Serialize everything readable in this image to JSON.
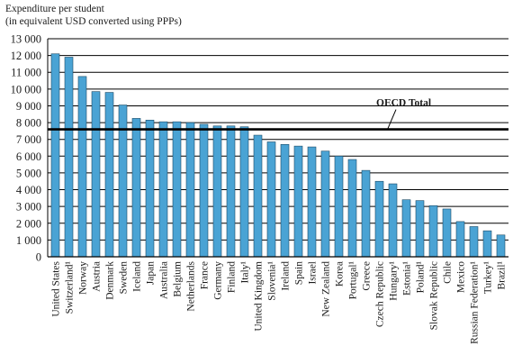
{
  "chart_data": {
    "type": "bar",
    "ylabel_line1": "Expenditure per student",
    "ylabel_line2": "(in equivalent USD converted using PPPs)",
    "ylim": [
      0,
      13000
    ],
    "yticks": [
      0,
      1000,
      2000,
      3000,
      4000,
      5000,
      6000,
      7000,
      8000,
      9000,
      10000,
      11000,
      12000,
      13000
    ],
    "ytick_labels": [
      "0",
      "1 000",
      "2 000",
      "3 000",
      "4 000",
      "5 000",
      "6 000",
      "7 000",
      "8 000",
      "9 000",
      "10 000",
      "11 000",
      "12 000",
      "13 000"
    ],
    "categories": [
      "United States",
      "Switzerland¹",
      "Norway",
      "Austria",
      "Denmark",
      "Sweden",
      "Iceland",
      "Japan",
      "Australia",
      "Belgium",
      "Netherlands",
      "France",
      "Germany",
      "Finland",
      "Italy¹",
      "United Kingdom",
      "Slovenia¹",
      "Ireland",
      "Spain",
      "Israel",
      "New Zealand",
      "Korea",
      "Portugal¹",
      "Greece",
      "Czech Republic",
      "Hungary¹",
      "Estonia¹",
      "Poland¹",
      "Slovak Republic",
      "Chile",
      "Mexico",
      "Russian Federation¹",
      "Turkey¹",
      "Brazil¹"
    ],
    "values": [
      12100,
      11900,
      10750,
      9850,
      9800,
      9050,
      8250,
      8150,
      8050,
      8050,
      8000,
      7900,
      7800,
      7800,
      7750,
      7250,
      6850,
      6700,
      6600,
      6550,
      6300,
      6000,
      5800,
      5150,
      4500,
      4350,
      3400,
      3350,
      3050,
      2850,
      2100,
      1800,
      1550,
      1300
    ],
    "reference_line": {
      "label": "OECD Total",
      "value": 7600
    },
    "bar_color": "#4aa3d4",
    "grid": "horizontal"
  }
}
